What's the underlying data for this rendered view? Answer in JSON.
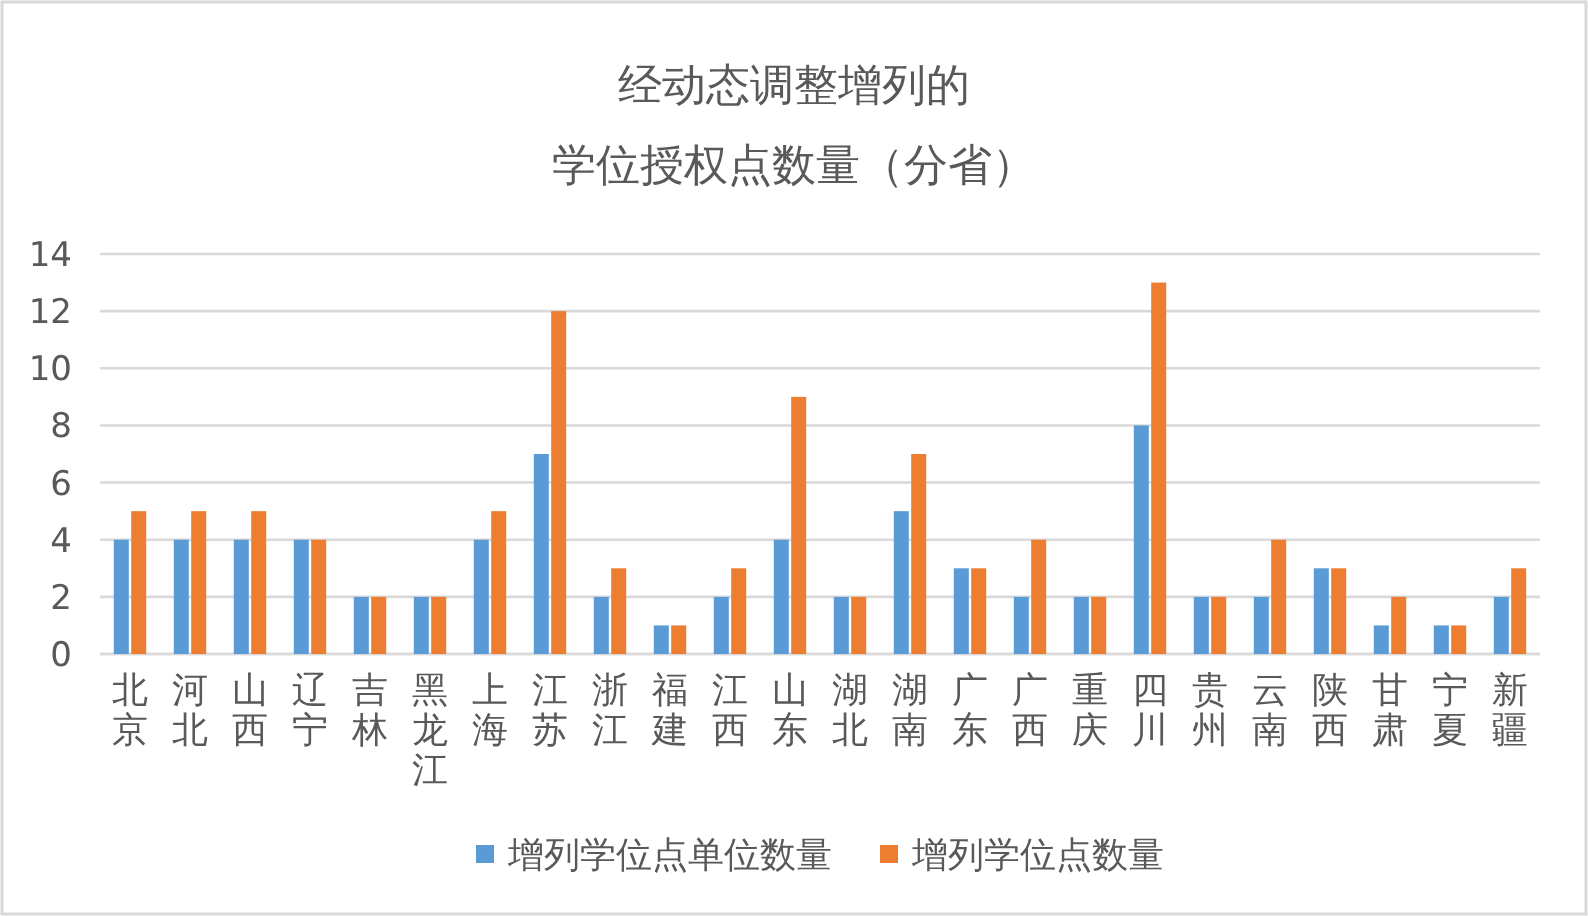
{
  "chart_data": {
    "type": "bar",
    "title": "经动态调整增列的",
    "subtitle": "学位授权点数量（分省）",
    "categories": [
      "北京",
      "河北",
      "山西",
      "辽宁",
      "吉林",
      "黑龙江",
      "上海",
      "江苏",
      "浙江",
      "福建",
      "江西",
      "山东",
      "湖北",
      "湖南",
      "广东",
      "广西",
      "重庆",
      "四川",
      "贵州",
      "云南",
      "陕西",
      "甘肃",
      "宁夏",
      "新疆"
    ],
    "series": [
      {
        "name": "增列学位点单位数量",
        "color": "#5b9bd5",
        "values": [
          4,
          4,
          4,
          4,
          2,
          2,
          4,
          7,
          2,
          1,
          2,
          4,
          2,
          5,
          3,
          2,
          2,
          8,
          2,
          2,
          3,
          1,
          1,
          2
        ]
      },
      {
        "name": "增列学位点数量",
        "color": "#ed7d31",
        "values": [
          5,
          5,
          5,
          4,
          2,
          2,
          5,
          12,
          3,
          1,
          3,
          9,
          2,
          7,
          3,
          4,
          2,
          13,
          2,
          4,
          3,
          2,
          1,
          3
        ]
      }
    ],
    "ylim": [
      0,
      14
    ],
    "yticks": [
      0,
      2,
      4,
      6,
      8,
      10,
      12,
      14
    ],
    "grid": "y",
    "legend": "bottom"
  }
}
